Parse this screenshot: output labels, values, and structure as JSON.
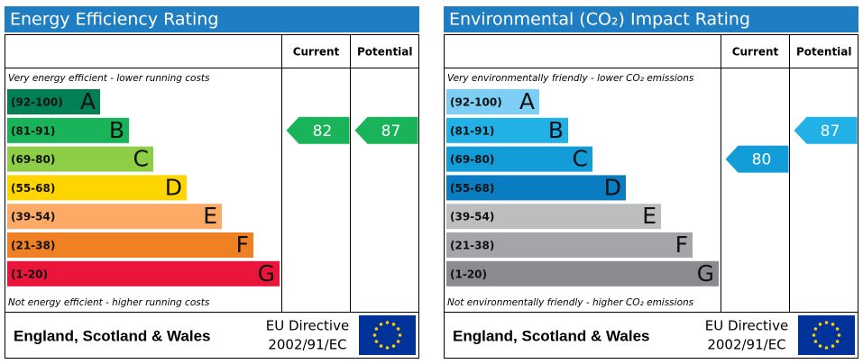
{
  "panels": [
    {
      "title": "Energy Efficiency Rating",
      "headers": [
        "Current",
        "Potential"
      ],
      "top_note": "Very energy efficient - lower running costs",
      "bottom_note": "Not energy efficient - higher running costs",
      "bands": [
        {
          "range": "(92-100)",
          "letter": "A",
          "color": "#008054"
        },
        {
          "range": "(81-91)",
          "letter": "B",
          "color": "#19b459"
        },
        {
          "range": "(69-80)",
          "letter": "C",
          "color": "#8dce46"
        },
        {
          "range": "(55-68)",
          "letter": "D",
          "color": "#ffd500"
        },
        {
          "range": "(39-54)",
          "letter": "E",
          "color": "#fcaa65"
        },
        {
          "range": "(21-38)",
          "letter": "F",
          "color": "#ef8023"
        },
        {
          "range": "(1-20)",
          "letter": "G",
          "color": "#e9153b"
        }
      ],
      "current": 82,
      "potential": 87,
      "footer": {
        "region": "England, Scotland & Wales",
        "directive": [
          "EU Directive",
          "2002/91/EC"
        ]
      }
    },
    {
      "title": "Environmental (CO₂) Impact Rating",
      "headers": [
        "Current",
        "Potential"
      ],
      "top_note": "Very environmentally friendly - lower CO₂ emissions",
      "bottom_note": "Not environmentally friendly - higher CO₂ emissions",
      "bands": [
        {
          "range": "(92-100)",
          "letter": "A",
          "color": "#7ccef4"
        },
        {
          "range": "(81-91)",
          "letter": "B",
          "color": "#22b1e7"
        },
        {
          "range": "(69-80)",
          "letter": "C",
          "color": "#129dd9"
        },
        {
          "range": "(55-68)",
          "letter": "D",
          "color": "#0a7dc2"
        },
        {
          "range": "(39-54)",
          "letter": "E",
          "color": "#bbbdbf"
        },
        {
          "range": "(21-38)",
          "letter": "F",
          "color": "#a3a5a8"
        },
        {
          "range": "(1-20)",
          "letter": "G",
          "color": "#898b8e"
        }
      ],
      "current": 80,
      "potential": 87,
      "footer": {
        "region": "England, Scotland & Wales",
        "directive": [
          "EU Directive",
          "2002/91/EC"
        ]
      }
    }
  ]
}
